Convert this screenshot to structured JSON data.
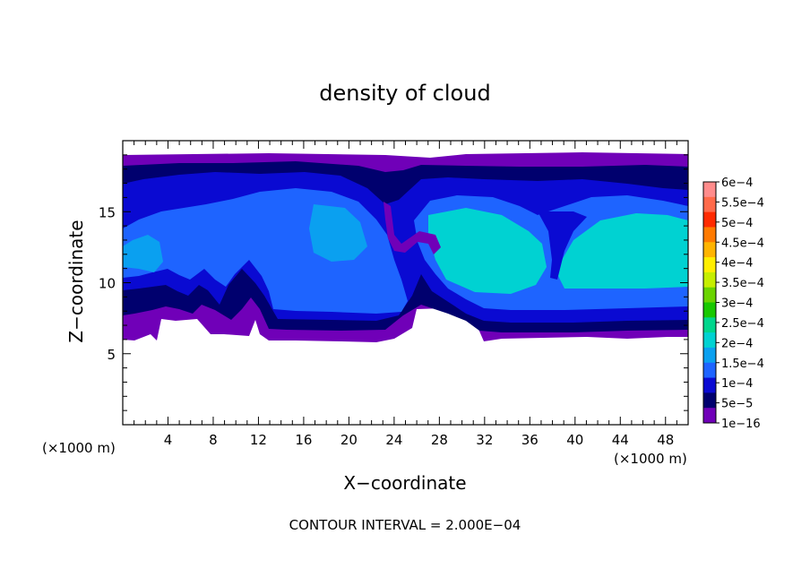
{
  "chart_data": {
    "type": "heatmap",
    "title": "density of cloud",
    "xlabel": "X−coordinate",
    "ylabel": "Z−coordinate",
    "x_unit": "(×1000 m)",
    "y_unit": "(×1000 m)",
    "xlim": [
      0,
      50
    ],
    "ylim": [
      0,
      20
    ],
    "x_ticks": [
      4,
      8,
      12,
      16,
      20,
      24,
      28,
      32,
      36,
      40,
      44,
      48
    ],
    "y_ticks": [
      5,
      10,
      15
    ],
    "footer": "CONTOUR INTERVAL = 2.000E−04",
    "colorbar": {
      "labels": [
        "6e−4",
        "5.5e−4",
        "5e−4",
        "4.5e−4",
        "4e−4",
        "3.5e−4",
        "3e−4",
        "2.5e−4",
        "2e−4",
        "1.5e−4",
        "1e−4",
        "5e−5",
        "1e−16"
      ],
      "colors": [
        "#ff8c8c",
        "#ff6a4a",
        "#ff2a00",
        "#ff7a00",
        "#ffb400",
        "#ffee00",
        "#c6ee00",
        "#6ad400",
        "#18c800",
        "#00d68c",
        "#00d2d2",
        "#0aa0f0",
        "#1e64ff",
        "#0a0ad2",
        "#00006e",
        "#7000b8"
      ]
    },
    "field": {
      "cloud_base_z": 6.2,
      "cloud_top_z": 18.8,
      "levels": [
        "1e−16",
        "5e−5",
        "1e−4",
        "1.5e−4"
      ]
    }
  }
}
